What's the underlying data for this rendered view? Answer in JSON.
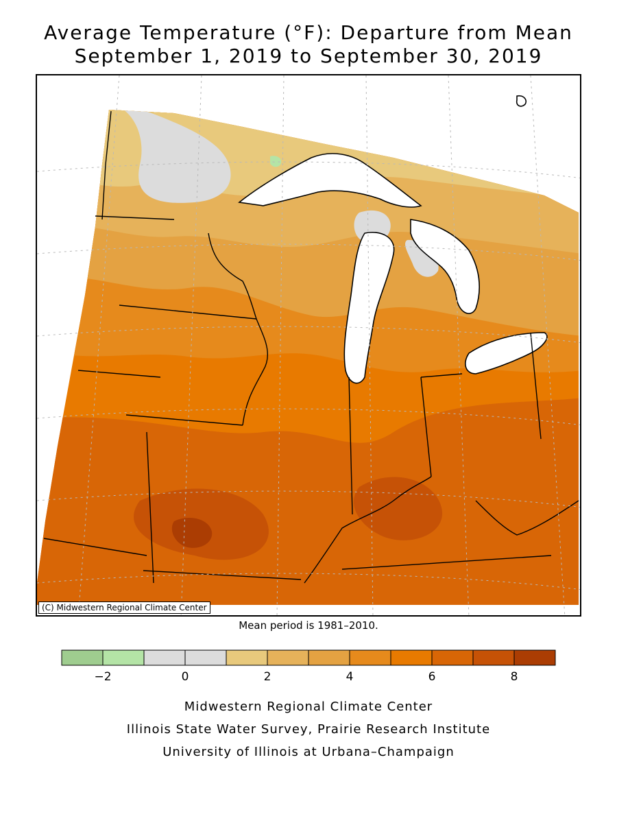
{
  "header": {
    "title_line1": "Average Temperature (°F): Departure from Mean",
    "title_line2": "September 1, 2019 to September 30, 2019"
  },
  "map": {
    "copyright": "(C) Midwestern Regional Climate Center",
    "mean_period_note": "Mean period is 1981–2010."
  },
  "legend": {
    "bins": [
      {
        "range": "-3 to -2",
        "color": "#9fcd8f"
      },
      {
        "range": "-2 to -1",
        "color": "#b4e4a6"
      },
      {
        "range": "-1 to 0",
        "color": "#dcdcdc"
      },
      {
        "range": "0 to 1",
        "color": "#dcdcdc"
      },
      {
        "range": "1 to 2",
        "color": "#e8c97c"
      },
      {
        "range": "2 to 3",
        "color": "#e6b25a"
      },
      {
        "range": "3 to 4",
        "color": "#e4a242"
      },
      {
        "range": "4 to 5",
        "color": "#e68a1c"
      },
      {
        "range": "5 to 6",
        "color": "#e87a00"
      },
      {
        "range": "6 to 7",
        "color": "#d86606"
      },
      {
        "range": "7 to 8",
        "color": "#c65206"
      },
      {
        "range": "8 to 9",
        "color": "#ab3d03"
      }
    ],
    "tick_labels": [
      "−2",
      "0",
      "2",
      "4",
      "6",
      "8"
    ]
  },
  "credits": {
    "line1": "Midwestern Regional Climate Center",
    "line2": "Illinois State Water Survey, Prairie Research Institute",
    "line3": "University of Illinois at Urbana–Champaign"
  }
}
